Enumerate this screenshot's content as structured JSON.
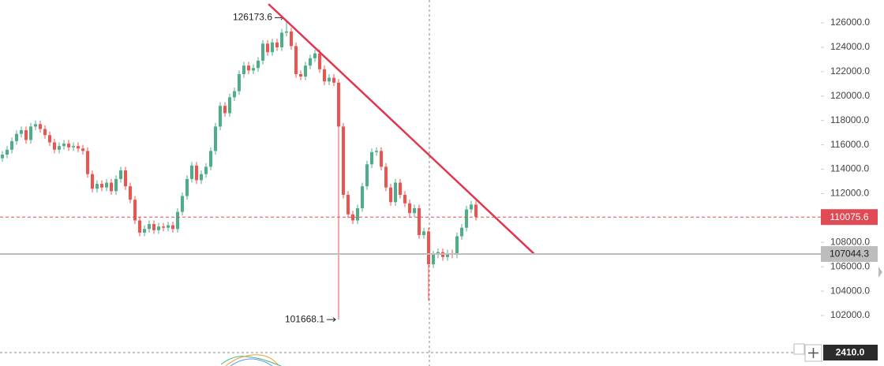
{
  "chart_data": {
    "type": "candlestick",
    "up_color": "#4caf87",
    "down_color": "#ef5350",
    "ylim": [
      97860,
      127880
    ],
    "yticks": [
      {
        "value": 102000,
        "label": "102000.0"
      },
      {
        "value": 104000,
        "label": "104000.0"
      },
      {
        "value": 106000,
        "label": "106000.0"
      },
      {
        "value": 108000,
        "label": "108000.0"
      },
      {
        "value": 110000,
        "label": "110000.0"
      },
      {
        "value": 112000,
        "label": "112000.0"
      },
      {
        "value": 114000,
        "label": "114000.0"
      },
      {
        "value": 116000,
        "label": "116000.0"
      },
      {
        "value": 118000,
        "label": "118000.0"
      },
      {
        "value": 120000,
        "label": "120000.0"
      },
      {
        "value": 122000,
        "label": "122000.0"
      },
      {
        "value": 124000,
        "label": "124000.0"
      },
      {
        "value": 126000,
        "label": "126000.0"
      }
    ],
    "ohlc": {
      "open": [
        114900,
        115200,
        115600,
        116300,
        116900,
        117200,
        116400,
        117500,
        117700,
        117300,
        116800,
        116200,
        115600,
        115900,
        116100,
        115800,
        115900,
        115700,
        115500,
        113600,
        112400,
        112800,
        112500,
        112900,
        112200,
        113200,
        113900,
        112600,
        111500,
        109800,
        108800,
        109100,
        109500,
        109000,
        109300,
        109200,
        109400,
        109100,
        110500,
        111800,
        113200,
        114300,
        113100,
        113600,
        114200,
        115500,
        117500,
        119200,
        118600,
        119900,
        120400,
        121800,
        122500,
        122100,
        122300,
        122900,
        124300,
        123600,
        124400,
        124000,
        125200,
        125300,
        124100,
        121800,
        121600,
        122500,
        123100,
        123500,
        122200,
        121200,
        121500,
        121100,
        117500,
        111900,
        110300,
        109800,
        110800,
        112600,
        114400,
        115400,
        115500,
        114200,
        112500,
        111300,
        112900,
        111900,
        111200,
        110400,
        110800,
        108600,
        108900,
        106200,
        107000,
        107200,
        106800,
        107100,
        107000,
        108500,
        109200,
        110700,
        111100
      ],
      "high": [
        115500,
        115900,
        116600,
        117200,
        117500,
        117500,
        117800,
        118000,
        118000,
        117600,
        117100,
        116500,
        116200,
        116400,
        116400,
        116200,
        116200,
        116000,
        115800,
        113900,
        113100,
        113100,
        113200,
        113200,
        113500,
        114200,
        114200,
        112900,
        111800,
        110100,
        109400,
        109800,
        109800,
        109600,
        109600,
        109700,
        109700,
        110800,
        112100,
        113500,
        114600,
        114600,
        113900,
        114500,
        115800,
        117800,
        119500,
        119500,
        120200,
        120700,
        122100,
        122800,
        122800,
        122600,
        123200,
        124600,
        124600,
        124700,
        124700,
        125500,
        126173.6,
        125600,
        124400,
        122100,
        122800,
        123400,
        123800,
        123800,
        122500,
        121800,
        121800,
        121400,
        117800,
        112200,
        110600,
        111100,
        112900,
        114700,
        115700,
        115800,
        115800,
        114500,
        112800,
        113200,
        113200,
        112200,
        111500,
        111100,
        111100,
        109200,
        109200,
        107300,
        107500,
        107500,
        107400,
        107400,
        108800,
        109500,
        111000,
        111400,
        111400
      ],
      "low": [
        114600,
        114900,
        115300,
        116000,
        116600,
        116100,
        116100,
        117200,
        117000,
        116500,
        115900,
        115300,
        115300,
        115600,
        115500,
        115500,
        115400,
        115200,
        113300,
        112100,
        112100,
        112200,
        112200,
        111900,
        111900,
        112900,
        112300,
        111200,
        109500,
        108500,
        108500,
        108800,
        108700,
        108700,
        108900,
        108900,
        108800,
        108800,
        110200,
        111500,
        112900,
        112800,
        112800,
        113300,
        113900,
        115200,
        117200,
        118300,
        118300,
        119600,
        120100,
        121500,
        121800,
        121800,
        122000,
        122600,
        123300,
        123300,
        123700,
        123700,
        124900,
        123800,
        121500,
        121300,
        121300,
        122200,
        122800,
        121900,
        120900,
        120900,
        120800,
        101668.1,
        111600,
        110000,
        109500,
        109500,
        110500,
        112300,
        114100,
        115100,
        113900,
        112200,
        111000,
        111000,
        111600,
        110900,
        110100,
        110100,
        108300,
        108300,
        103200,
        105900,
        106700,
        106500,
        106500,
        106700,
        106700,
        108200,
        108900,
        110400,
        109800
      ],
      "close": [
        115200,
        115600,
        116300,
        116900,
        117200,
        116400,
        117500,
        117700,
        117300,
        116800,
        116200,
        115600,
        115900,
        116100,
        115800,
        115900,
        115700,
        115500,
        113600,
        112400,
        112800,
        112500,
        112900,
        112200,
        113200,
        113900,
        112600,
        111500,
        109800,
        108800,
        109100,
        109500,
        109000,
        109300,
        109200,
        109400,
        109100,
        110500,
        111800,
        113200,
        114300,
        113100,
        113600,
        114200,
        115500,
        117500,
        119200,
        118600,
        119900,
        120400,
        121800,
        122500,
        122100,
        122300,
        122900,
        124300,
        123600,
        124400,
        124000,
        125200,
        125300,
        124100,
        121800,
        121600,
        122500,
        123100,
        123500,
        122200,
        121200,
        121500,
        121100,
        117500,
        111900,
        110300,
        109800,
        110800,
        112600,
        114400,
        115400,
        115500,
        114200,
        112500,
        111300,
        112900,
        111900,
        111200,
        110400,
        110800,
        108600,
        108900,
        106200,
        107000,
        107200,
        106800,
        107100,
        107000,
        108500,
        109200,
        110700,
        111100,
        110100
      ]
    },
    "price_lines": [
      {
        "value": 110075.6,
        "color": "#e04a55",
        "style": "dashed"
      },
      {
        "value": 107044.3,
        "color": "#bdbdbd",
        "style": "solid"
      }
    ],
    "trendline": {
      "color": "#e0364f",
      "x": [
        56.2,
        112.3
      ],
      "values": [
        127550,
        107050
      ]
    },
    "crosshair_label": "2410.0"
  }
}
